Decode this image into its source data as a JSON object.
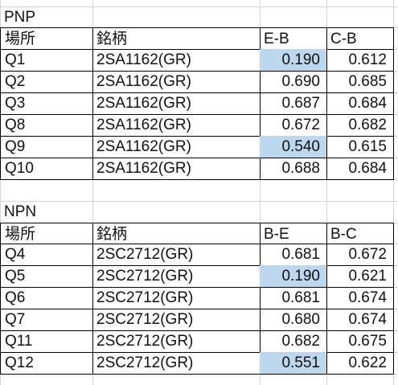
{
  "tables": [
    {
      "title": "PNP",
      "header": [
        "場所",
        "銘柄",
        "E-B",
        "C-B"
      ],
      "rows": [
        [
          "Q1",
          "2SA1162(GR)",
          "0.190",
          "0.612"
        ],
        [
          "Q2",
          "2SA1162(GR)",
          "0.690",
          "0.685"
        ],
        [
          "Q3",
          "2SA1162(GR)",
          "0.687",
          "0.684"
        ],
        [
          "Q8",
          "2SA1162(GR)",
          "0.672",
          "0.682"
        ],
        [
          "Q9",
          "2SA1162(GR)",
          "0.540",
          "0.615"
        ],
        [
          "Q10",
          "2SA1162(GR)",
          "0.688",
          "0.684"
        ]
      ],
      "highlighted": [
        [
          0,
          2
        ],
        [
          4,
          2
        ]
      ]
    },
    {
      "title": "NPN",
      "header": [
        "場所",
        "銘柄",
        "B-E",
        "B-C"
      ],
      "rows": [
        [
          "Q4",
          "2SC2712(GR)",
          "0.681",
          "0.672"
        ],
        [
          "Q5",
          "2SC2712(GR)",
          "0.190",
          "0.621"
        ],
        [
          "Q6",
          "2SC2712(GR)",
          "0.681",
          "0.674"
        ],
        [
          "Q7",
          "2SC2712(GR)",
          "0.680",
          "0.674"
        ],
        [
          "Q11",
          "2SC2712(GR)",
          "0.682",
          "0.675"
        ],
        [
          "Q12",
          "2SC2712(GR)",
          "0.551",
          "0.622"
        ]
      ],
      "highlighted": [
        [
          1,
          2
        ],
        [
          5,
          2
        ]
      ]
    }
  ]
}
